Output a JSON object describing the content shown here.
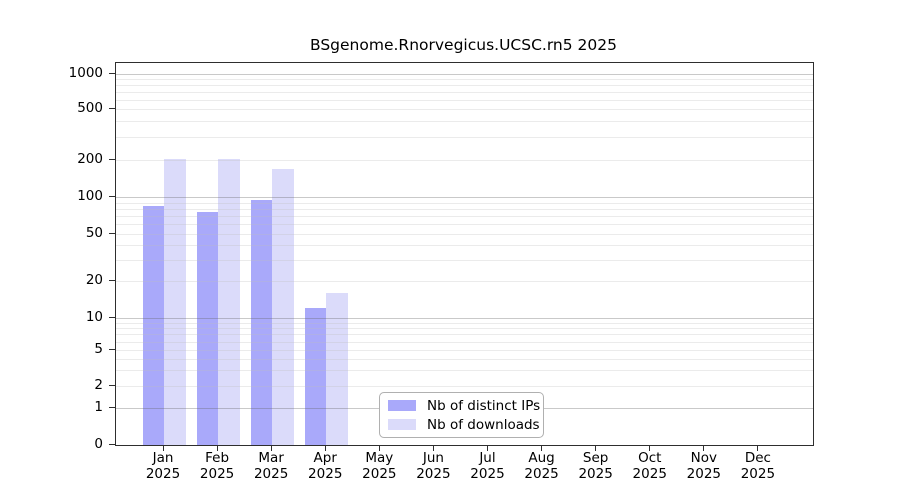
{
  "page": {
    "background_color": "#ffffff",
    "text_color": "#000000",
    "axis_color": "#2e2e2e"
  },
  "chart_data": {
    "type": "bar",
    "title": "BSgenome.Rnorvegicus.UCSC.rn5 2025",
    "categories": [
      {
        "month": "Jan",
        "year": "2025"
      },
      {
        "month": "Feb",
        "year": "2025"
      },
      {
        "month": "Mar",
        "year": "2025"
      },
      {
        "month": "Apr",
        "year": "2025"
      },
      {
        "month": "May",
        "year": "2025"
      },
      {
        "month": "Jun",
        "year": "2025"
      },
      {
        "month": "Jul",
        "year": "2025"
      },
      {
        "month": "Aug",
        "year": "2025"
      },
      {
        "month": "Sep",
        "year": "2025"
      },
      {
        "month": "Oct",
        "year": "2025"
      },
      {
        "month": "Nov",
        "year": "2025"
      },
      {
        "month": "Dec",
        "year": "2025"
      }
    ],
    "series": [
      {
        "name": "Nb of distinct IPs",
        "color": "#a9a9fa",
        "values": [
          84,
          76,
          95,
          12,
          0,
          0,
          0,
          0,
          0,
          0,
          0,
          0
        ]
      },
      {
        "name": "Nb of downloads",
        "color": "#dbdbfa",
        "values": [
          203,
          205,
          168,
          16,
          0,
          0,
          0,
          0,
          0,
          0,
          0,
          0
        ]
      }
    ],
    "y_axis": {
      "ticks": [
        0,
        1,
        2,
        5,
        10,
        20,
        50,
        100,
        200,
        500,
        1000
      ],
      "scale": "log-like",
      "range": [
        0,
        1000
      ]
    },
    "x_axis": {
      "tick_style": "two-line month/year labels"
    },
    "legend": {
      "position": "inside-bottom-center",
      "entries": [
        "Nb of distinct IPs",
        "Nb of downloads"
      ]
    },
    "grid": {
      "major_lines": [
        1,
        10,
        100,
        1000
      ],
      "minor_lines": [
        2,
        3,
        4,
        5,
        6,
        7,
        8,
        9,
        20,
        30,
        40,
        50,
        60,
        70,
        80,
        90,
        200,
        300,
        400,
        500,
        600,
        700,
        800,
        900
      ]
    }
  }
}
